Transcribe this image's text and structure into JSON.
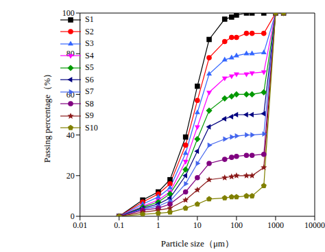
{
  "chart_data": {
    "type": "line",
    "x_label": "Particle size（μm）",
    "y_label": "Passing percentage（%）",
    "log": "x",
    "grid": false,
    "legend": "upper left",
    "xlim": [
      0.01,
      10000
    ],
    "xticks": [
      0.01,
      0.1,
      1,
      10,
      100,
      1000,
      10000
    ],
    "ylim": [
      0,
      100
    ],
    "yticks": [
      0,
      20,
      40,
      60,
      80,
      100
    ],
    "x": [
      0.1,
      0.4,
      1,
      2,
      5,
      10,
      20,
      50,
      75,
      100,
      180,
      250,
      500,
      1000,
      1600
    ],
    "series": [
      {
        "name": "S1",
        "color": "#000000",
        "marker": "square",
        "values": [
          0,
          8,
          12,
          18,
          39,
          64,
          87,
          97,
          98,
          99,
          100,
          100,
          100,
          100,
          100
        ]
      },
      {
        "name": "S2",
        "color": "#ff0000",
        "marker": "circle",
        "values": [
          0,
          7,
          11,
          16,
          35,
          57,
          78,
          86,
          88,
          88,
          90,
          90,
          90,
          100,
          100
        ]
      },
      {
        "name": "S3",
        "color": "#3366ff",
        "marker": "triangle",
        "values": [
          0,
          6,
          9.5,
          14,
          31,
          51,
          70,
          77,
          78,
          79,
          80,
          80,
          80.5,
          100,
          100
        ]
      },
      {
        "name": "S4",
        "color": "#ff00ff",
        "marker": "triangle-down",
        "values": [
          0,
          5,
          8,
          12,
          27,
          44,
          61,
          68,
          69,
          70,
          70,
          70.5,
          71,
          100,
          100
        ]
      },
      {
        "name": "S5",
        "color": "#009900",
        "marker": "diamond",
        "values": [
          0,
          4.5,
          7,
          11,
          23,
          38,
          52,
          58,
          59,
          60,
          60,
          60,
          61,
          100,
          100
        ]
      },
      {
        "name": "S6",
        "color": "#000080",
        "marker": "triangle-left",
        "values": [
          0,
          4,
          6,
          9,
          20,
          32,
          44,
          48,
          49,
          50,
          50,
          50,
          50.5,
          100,
          100
        ]
      },
      {
        "name": "S7",
        "color": "#4466ee",
        "marker": "triangle-right",
        "values": [
          0,
          3.5,
          5,
          7.5,
          16,
          26,
          35,
          38,
          39,
          39.5,
          40,
          40,
          40.5,
          100,
          100
        ]
      },
      {
        "name": "S8",
        "color": "#800080",
        "marker": "circle",
        "values": [
          0,
          3,
          4,
          6,
          12,
          19,
          26,
          28,
          29,
          29.5,
          30,
          30,
          30.5,
          100,
          100
        ]
      },
      {
        "name": "S9",
        "color": "#8b1a1a",
        "marker": "star",
        "values": [
          0,
          2,
          3,
          4,
          8,
          13,
          18,
          19,
          19.5,
          20,
          20,
          20,
          24,
          100,
          100
        ]
      },
      {
        "name": "S10",
        "color": "#808000",
        "marker": "pentagon",
        "values": [
          0,
          1,
          1.5,
          2,
          4,
          6,
          8.5,
          9,
          9.5,
          9.5,
          10,
          10,
          15,
          100,
          100
        ]
      }
    ]
  }
}
